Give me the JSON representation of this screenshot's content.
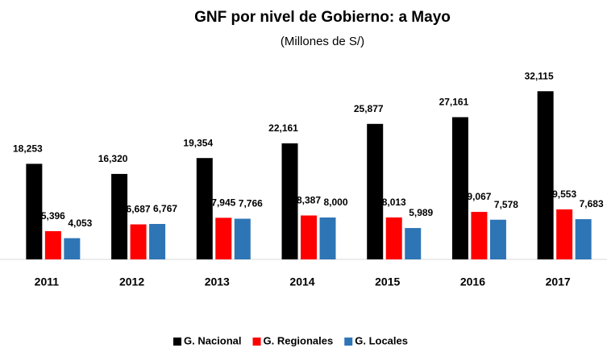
{
  "chart_data": {
    "type": "bar",
    "title": "GNF por nivel de Gobierno: a Mayo",
    "subtitle": "(Millones de S/)",
    "categories": [
      "2011",
      "2012",
      "2013",
      "2014",
      "2015",
      "2016",
      "2017"
    ],
    "series": [
      {
        "name": "G. Nacional",
        "color": "#000000",
        "values": [
          18253,
          16320,
          19354,
          22161,
          25877,
          27161,
          32115
        ],
        "value_labels": [
          "18,253",
          "16,320",
          "19,354",
          "22,161",
          "25,877",
          "27,161",
          "32,115"
        ]
      },
      {
        "name": "G. Regionales",
        "color": "#ff0000",
        "values": [
          5396,
          6687,
          7945,
          8387,
          8013,
          9067,
          9553
        ],
        "value_labels": [
          "5,396",
          "6,687",
          "7,945",
          "8,387",
          "8,013",
          "9,067",
          "9,553"
        ]
      },
      {
        "name": "G. Locales",
        "color": "#2e75b6",
        "values": [
          4053,
          6767,
          7766,
          8000,
          5989,
          7578,
          7683
        ],
        "value_labels": [
          "4,053",
          "6,767",
          "7,766",
          "8,000",
          "5,989",
          "7,578",
          "7,683"
        ]
      }
    ],
    "ylim": [
      0,
      35000
    ],
    "legend": "bottom"
  }
}
